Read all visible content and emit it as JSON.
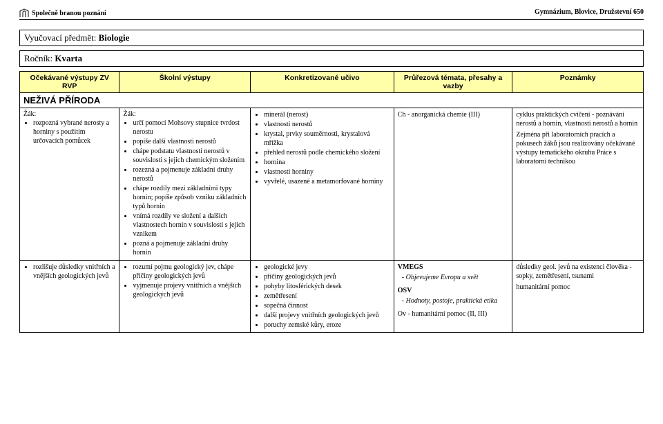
{
  "header": {
    "left": "Společně branou poznání",
    "right": "Gymnázium, Blovice, Družstevní 650"
  },
  "subject_box": {
    "label": "Vyučovací předmět: ",
    "value": "Biologie"
  },
  "grade_box": {
    "label": "Ročník: ",
    "value": "Kvarta"
  },
  "columns": {
    "c1": "Očekávané výstupy ZV RVP",
    "c2": "Školní výstupy",
    "c3": "Konkretizované učivo",
    "c4": "Průřezová témata, přesahy a vazby",
    "c5": "Poznámky"
  },
  "col_widths": {
    "c1": "16%",
    "c2": "21%",
    "c3": "23%",
    "c4": "19%",
    "c5": "21%"
  },
  "section1_title": "NEŽIVÁ PŘÍRODA",
  "row1": {
    "col1_lead": "Žák:",
    "col1_items": [
      "rozpozná vybrané nerosty a horniny s použitím určovacích pomůcek"
    ],
    "col2_lead": "Žák:",
    "col2_items": [
      "určí pomocí Mohsovy stupnice tvrdost nerostu",
      "popíše další vlastnosti nerostů",
      "chápe podstatu vlastností nerostů v souvislosti s jejich chemickým složením",
      "rozezná a pojmenuje základní druhy nerostů",
      "chápe rozdíly mezi základními typy hornin; popíše způsob vzniku základních typů hornin",
      "vnímá rozdíly ve složení a dalších vlastnostech hornin v souvislosti s jejich vznikem",
      "pozná a pojmenuje základní druhy hornin"
    ],
    "col3_items": [
      "minerál (nerost)",
      "vlastnosti nerostů",
      "krystal, prvky souměrnosti, krystalová mřížka",
      "přehled nerostů podle chemického složení",
      "hornina",
      "vlastnosti horniny",
      "vyvřelé, usazené a metamorfované horniny"
    ],
    "col4": {
      "l1": "Ch - anorganická chemie (III)"
    },
    "col5": {
      "p1": "cyklus praktických cvičení - poznávání nerostů a hornin, vlastnosti nerostů a hornin",
      "p2": "Zejména při laboratorních pracích a pokusech žáků jsou realizovány očekávané výstupy tematického okruhu Práce s laboratorní technikou"
    }
  },
  "row2": {
    "col1_items": [
      "rozlišuje důsledky vnitřních a vnějších geologických jevů"
    ],
    "col2_items": [
      "rozumí pojmu geologický jev, chápe příčiny geologických jevů",
      "vyjmenuje projevy vnitřních a vnějších geologických jevů"
    ],
    "col3_items": [
      "geologické jevy",
      "příčiny geologických jevů",
      "pohyby litosférických desek",
      "zemětřesení",
      "sopečná činnost",
      "další projevy vnitřních geologických jevů",
      "poruchy zemské kůry, eroze"
    ],
    "col4": {
      "l1": "VMEGS",
      "l2": "- Objevujeme Evropu a svět",
      "l3": "OSV",
      "l4": "- Hodnoty, postoje, praktická etika",
      "l5": "Ov - humanitární pomoc (II, III)"
    },
    "col5": {
      "p1": "důsledky geol. jevů na existenci člověka - sopky, zemětřesení, tsunami",
      "p2": "humanitární pomoc"
    }
  },
  "colors": {
    "header_bg": "#ffffaa",
    "border": "#000000",
    "text": "#000000",
    "page_bg": "#ffffff"
  }
}
